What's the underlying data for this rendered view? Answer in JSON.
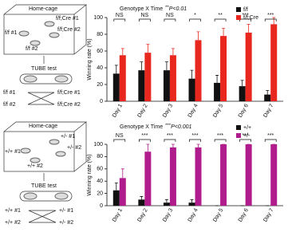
{
  "chart_data": [
    {
      "type": "bar",
      "title": "Genotype X Time",
      "annotation_stars": "**",
      "annotation_p": "P<0.01",
      "y_label": "Winning rate (%)",
      "categories": [
        "Day 1",
        "Day 2",
        "Day 3",
        "Day 4",
        "Day 5",
        "Day 6",
        "Day 7"
      ],
      "series": [
        {
          "name": "f/f",
          "color": "#111111",
          "values": [
            33,
            37,
            37,
            27,
            22,
            18,
            8
          ],
          "errors": [
            10,
            10,
            10,
            10,
            9,
            7,
            5
          ]
        },
        {
          "name": "f/f;Cre",
          "color": "#e8281e",
          "values": [
            55,
            58,
            55,
            73,
            78,
            82,
            92
          ],
          "errors": [
            8,
            10,
            8,
            10,
            9,
            10,
            8
          ]
        }
      ],
      "significance": [
        "NS",
        "NS",
        "NS",
        "*",
        "**",
        "***",
        "***"
      ],
      "ylim": [
        0,
        100
      ],
      "yticks": [
        0,
        20,
        40,
        60,
        80,
        100
      ],
      "legend": "top-right"
    },
    {
      "type": "bar",
      "title": "Genotype X Time",
      "annotation_stars": "***",
      "annotation_p": "P<0.001",
      "y_label": "Winning rate (%)",
      "categories": [
        "Day 1",
        "Day 2",
        "Day 3",
        "Day 4",
        "Day 5",
        "Day 6",
        "Day 7"
      ],
      "series": [
        {
          "name": "+/+",
          "color": "#111111",
          "values": [
            25,
            10,
            5,
            5,
            0,
            0,
            0
          ],
          "errors": [
            12,
            5,
            5,
            5,
            0,
            0,
            0
          ]
        },
        {
          "name": "+/-",
          "color": "#b01c8c",
          "values": [
            45,
            88,
            95,
            95,
            100,
            100,
            100
          ],
          "errors": [
            15,
            12,
            5,
            5,
            0,
            0,
            0
          ]
        }
      ],
      "significance": [
        "NS",
        "***",
        "***",
        "***",
        "***",
        "***",
        "***"
      ],
      "ylim": [
        0,
        100
      ],
      "yticks": [
        0,
        20,
        40,
        60,
        80,
        100
      ],
      "legend": "top-right"
    }
  ],
  "diagrams": [
    {
      "cage": "Home-cage",
      "mice": [
        "f/f #1",
        "f/f;Cre #1",
        "f/f;Cre #2",
        "f/f #2"
      ],
      "test": "TUBE test",
      "left": [
        "f/f #1",
        "f/f #2"
      ],
      "right": [
        "f/f;Cre #1",
        "f/f;Cre #2"
      ]
    },
    {
      "cage": "Home-cage",
      "mice": [
        "+/+ #1",
        "+/- #1",
        "+/- #2",
        "+/+ #2"
      ],
      "test": "TUBE test",
      "left": [
        "+/+ #1",
        "+/+ #2"
      ],
      "right": [
        "+/- #1",
        "+/- #2"
      ]
    }
  ]
}
